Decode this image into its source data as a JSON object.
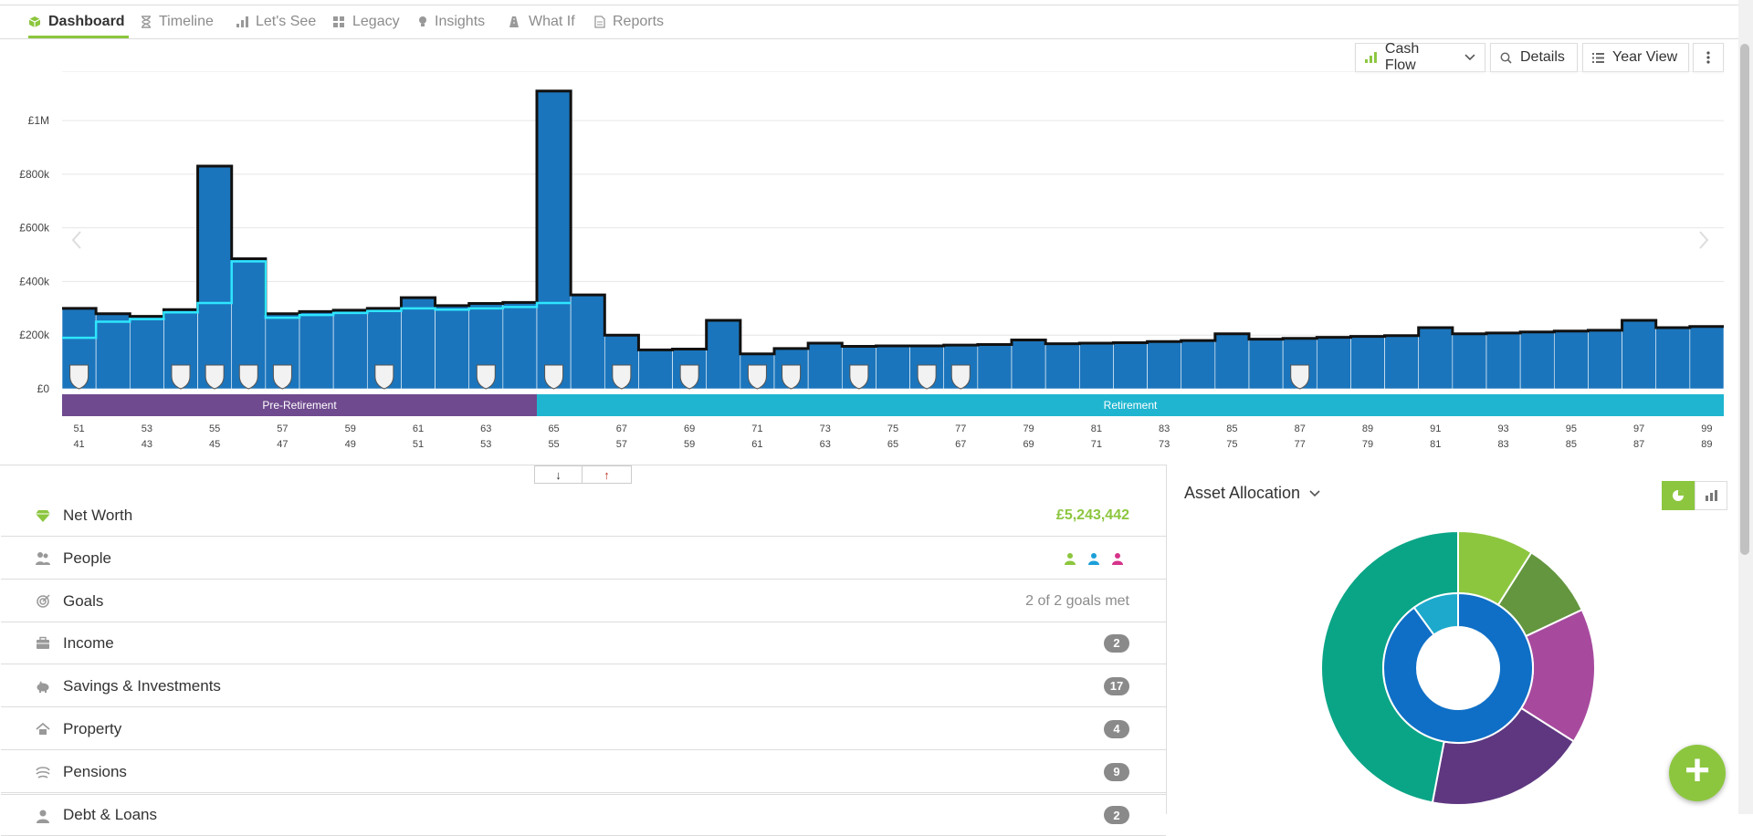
{
  "tabs": [
    {
      "label": "Dashboard",
      "icon": "cube-icon",
      "active": true
    },
    {
      "label": "Timeline",
      "icon": "hourglass-icon",
      "active": false
    },
    {
      "label": "Let's See",
      "icon": "bar-chart-icon",
      "active": false
    },
    {
      "label": "Legacy",
      "icon": "blocks-icon",
      "active": false
    },
    {
      "label": "Insights",
      "icon": "lightbulb-icon",
      "active": false
    },
    {
      "label": "What If",
      "icon": "road-icon",
      "active": false
    },
    {
      "label": "Reports",
      "icon": "document-icon",
      "active": false
    }
  ],
  "toolbar": {
    "view_select": "Cash Flow",
    "details": "Details",
    "year_view": "Year View"
  },
  "chart_data": {
    "type": "bar",
    "title": "",
    "y_ticks": [
      "£0",
      "£200k",
      "£400k",
      "£600k",
      "£800k",
      "£1M"
    ],
    "ylim": [
      0,
      1150000
    ],
    "x_ticks_age1": [
      "51",
      "53",
      "55",
      "57",
      "59",
      "61",
      "63",
      "65",
      "67",
      "69",
      "71",
      "73",
      "75",
      "77",
      "79",
      "81",
      "83",
      "85",
      "87",
      "89",
      "91",
      "93",
      "95",
      "97",
      "99"
    ],
    "x_ticks_age2": [
      "41",
      "43",
      "45",
      "47",
      "49",
      "51",
      "53",
      "55",
      "57",
      "59",
      "61",
      "63",
      "65",
      "67",
      "69",
      "71",
      "73",
      "75",
      "77",
      "79",
      "81",
      "83",
      "85",
      "87",
      "89"
    ],
    "ages": [
      51,
      52,
      53,
      54,
      55,
      56,
      57,
      58,
      59,
      60,
      61,
      62,
      63,
      64,
      65,
      66,
      67,
      68,
      69,
      70,
      71,
      72,
      73,
      74,
      75,
      76,
      77,
      78,
      79,
      80,
      81,
      82,
      83,
      84,
      85,
      86,
      87,
      88,
      89,
      90,
      91,
      92,
      93,
      94,
      95,
      96,
      97,
      98,
      99
    ],
    "values": [
      300000,
      280000,
      270000,
      295000,
      830000,
      485000,
      280000,
      288000,
      293000,
      300000,
      340000,
      310000,
      318000,
      322000,
      1110000,
      350000,
      200000,
      145000,
      148000,
      255000,
      130000,
      150000,
      170000,
      158000,
      160000,
      160000,
      163000,
      165000,
      182000,
      168000,
      170000,
      172000,
      176000,
      180000,
      205000,
      185000,
      188000,
      192000,
      195000,
      198000,
      228000,
      205000,
      208000,
      212000,
      215000,
      218000,
      255000,
      228000,
      232000
    ],
    "cyan_line": [
      190000,
      250000,
      260000,
      285000,
      320000,
      475000,
      265000,
      275000,
      283000,
      290000,
      300000,
      295000,
      300000,
      305000,
      320000
    ],
    "goal_markers_at_age": [
      51,
      54,
      55,
      56,
      57,
      60,
      63,
      65,
      67,
      69,
      71,
      72,
      74,
      76,
      77,
      87
    ],
    "phases": [
      {
        "label": "Pre-Retirement",
        "from": 51,
        "to": 65,
        "color": "#6f4a8e"
      },
      {
        "label": "Retirement",
        "from": 65,
        "to": 100,
        "color": "#1fb5d0"
      }
    ],
    "bar_color": "#1b75bc"
  },
  "splitter": {
    "down": "↓",
    "up": "↑"
  },
  "summary_rows": [
    {
      "label": "Net Worth",
      "icon": "gem-icon",
      "value": "£5,243,442",
      "value_type": "green"
    },
    {
      "label": "People",
      "icon": "people-icon",
      "value": "",
      "value_type": "people"
    },
    {
      "label": "Goals",
      "icon": "target-icon",
      "value": "2 of 2 goals met",
      "value_type": "text"
    },
    {
      "label": "Income",
      "icon": "briefcase-icon",
      "value": "2",
      "value_type": "badge"
    },
    {
      "label": "Savings & Investments",
      "icon": "piggy-bank-icon",
      "value": "17",
      "value_type": "badge"
    },
    {
      "label": "Property",
      "icon": "house-icon",
      "value": "4",
      "value_type": "badge"
    },
    {
      "label": "Pensions",
      "icon": "umbrella-icon",
      "value": "9",
      "value_type": "badge"
    },
    {
      "label": "Debt & Loans",
      "icon": "person-icon",
      "value": "2",
      "value_type": "badge"
    }
  ],
  "people_colors": [
    "#8cc63f",
    "#1b9fd8",
    "#d6338a"
  ],
  "asset_allocation": {
    "title": "Asset Allocation",
    "inner": [
      {
        "share": 0.9,
        "color": "#0f6fc6"
      },
      {
        "share": 0.1,
        "color": "#1ca9cc"
      }
    ],
    "outer": [
      {
        "share": 0.09,
        "color": "#8cc63f"
      },
      {
        "share": 0.09,
        "color": "#63963e"
      },
      {
        "share": 0.16,
        "color": "#a74a9e"
      },
      {
        "share": 0.19,
        "color": "#5e3780"
      },
      {
        "share": 0.47,
        "color": "#0aa586"
      }
    ]
  },
  "fab": "+"
}
